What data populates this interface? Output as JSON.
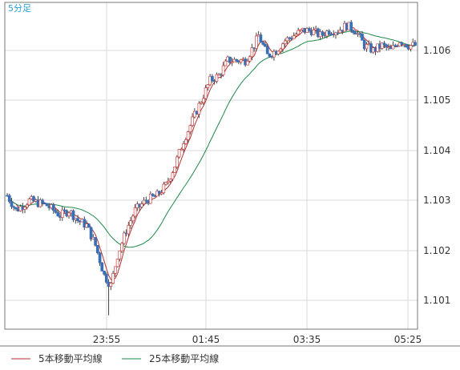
{
  "chart_data": {
    "type": "candlestick",
    "timeframe_label": "5分足",
    "x_ticks": [
      "23:55",
      "01:45",
      "03:35",
      "05:25"
    ],
    "y_ticks": [
      1.101,
      1.102,
      1.103,
      1.104,
      1.105,
      1.106
    ],
    "ylim": [
      1.1005,
      1.1066
    ],
    "grid": true,
    "legend_position": "bottom-left",
    "series": [
      {
        "name": "5本移動平均線",
        "color": "#b33030"
      },
      {
        "name": "25本移動平均線",
        "color": "#1e8a4a"
      }
    ],
    "colors": {
      "up": "#ffffff",
      "down": "#3a6fb6",
      "frame": "#777777",
      "grid": "#d8d8d8",
      "label": "#2aa0d6"
    }
  }
}
